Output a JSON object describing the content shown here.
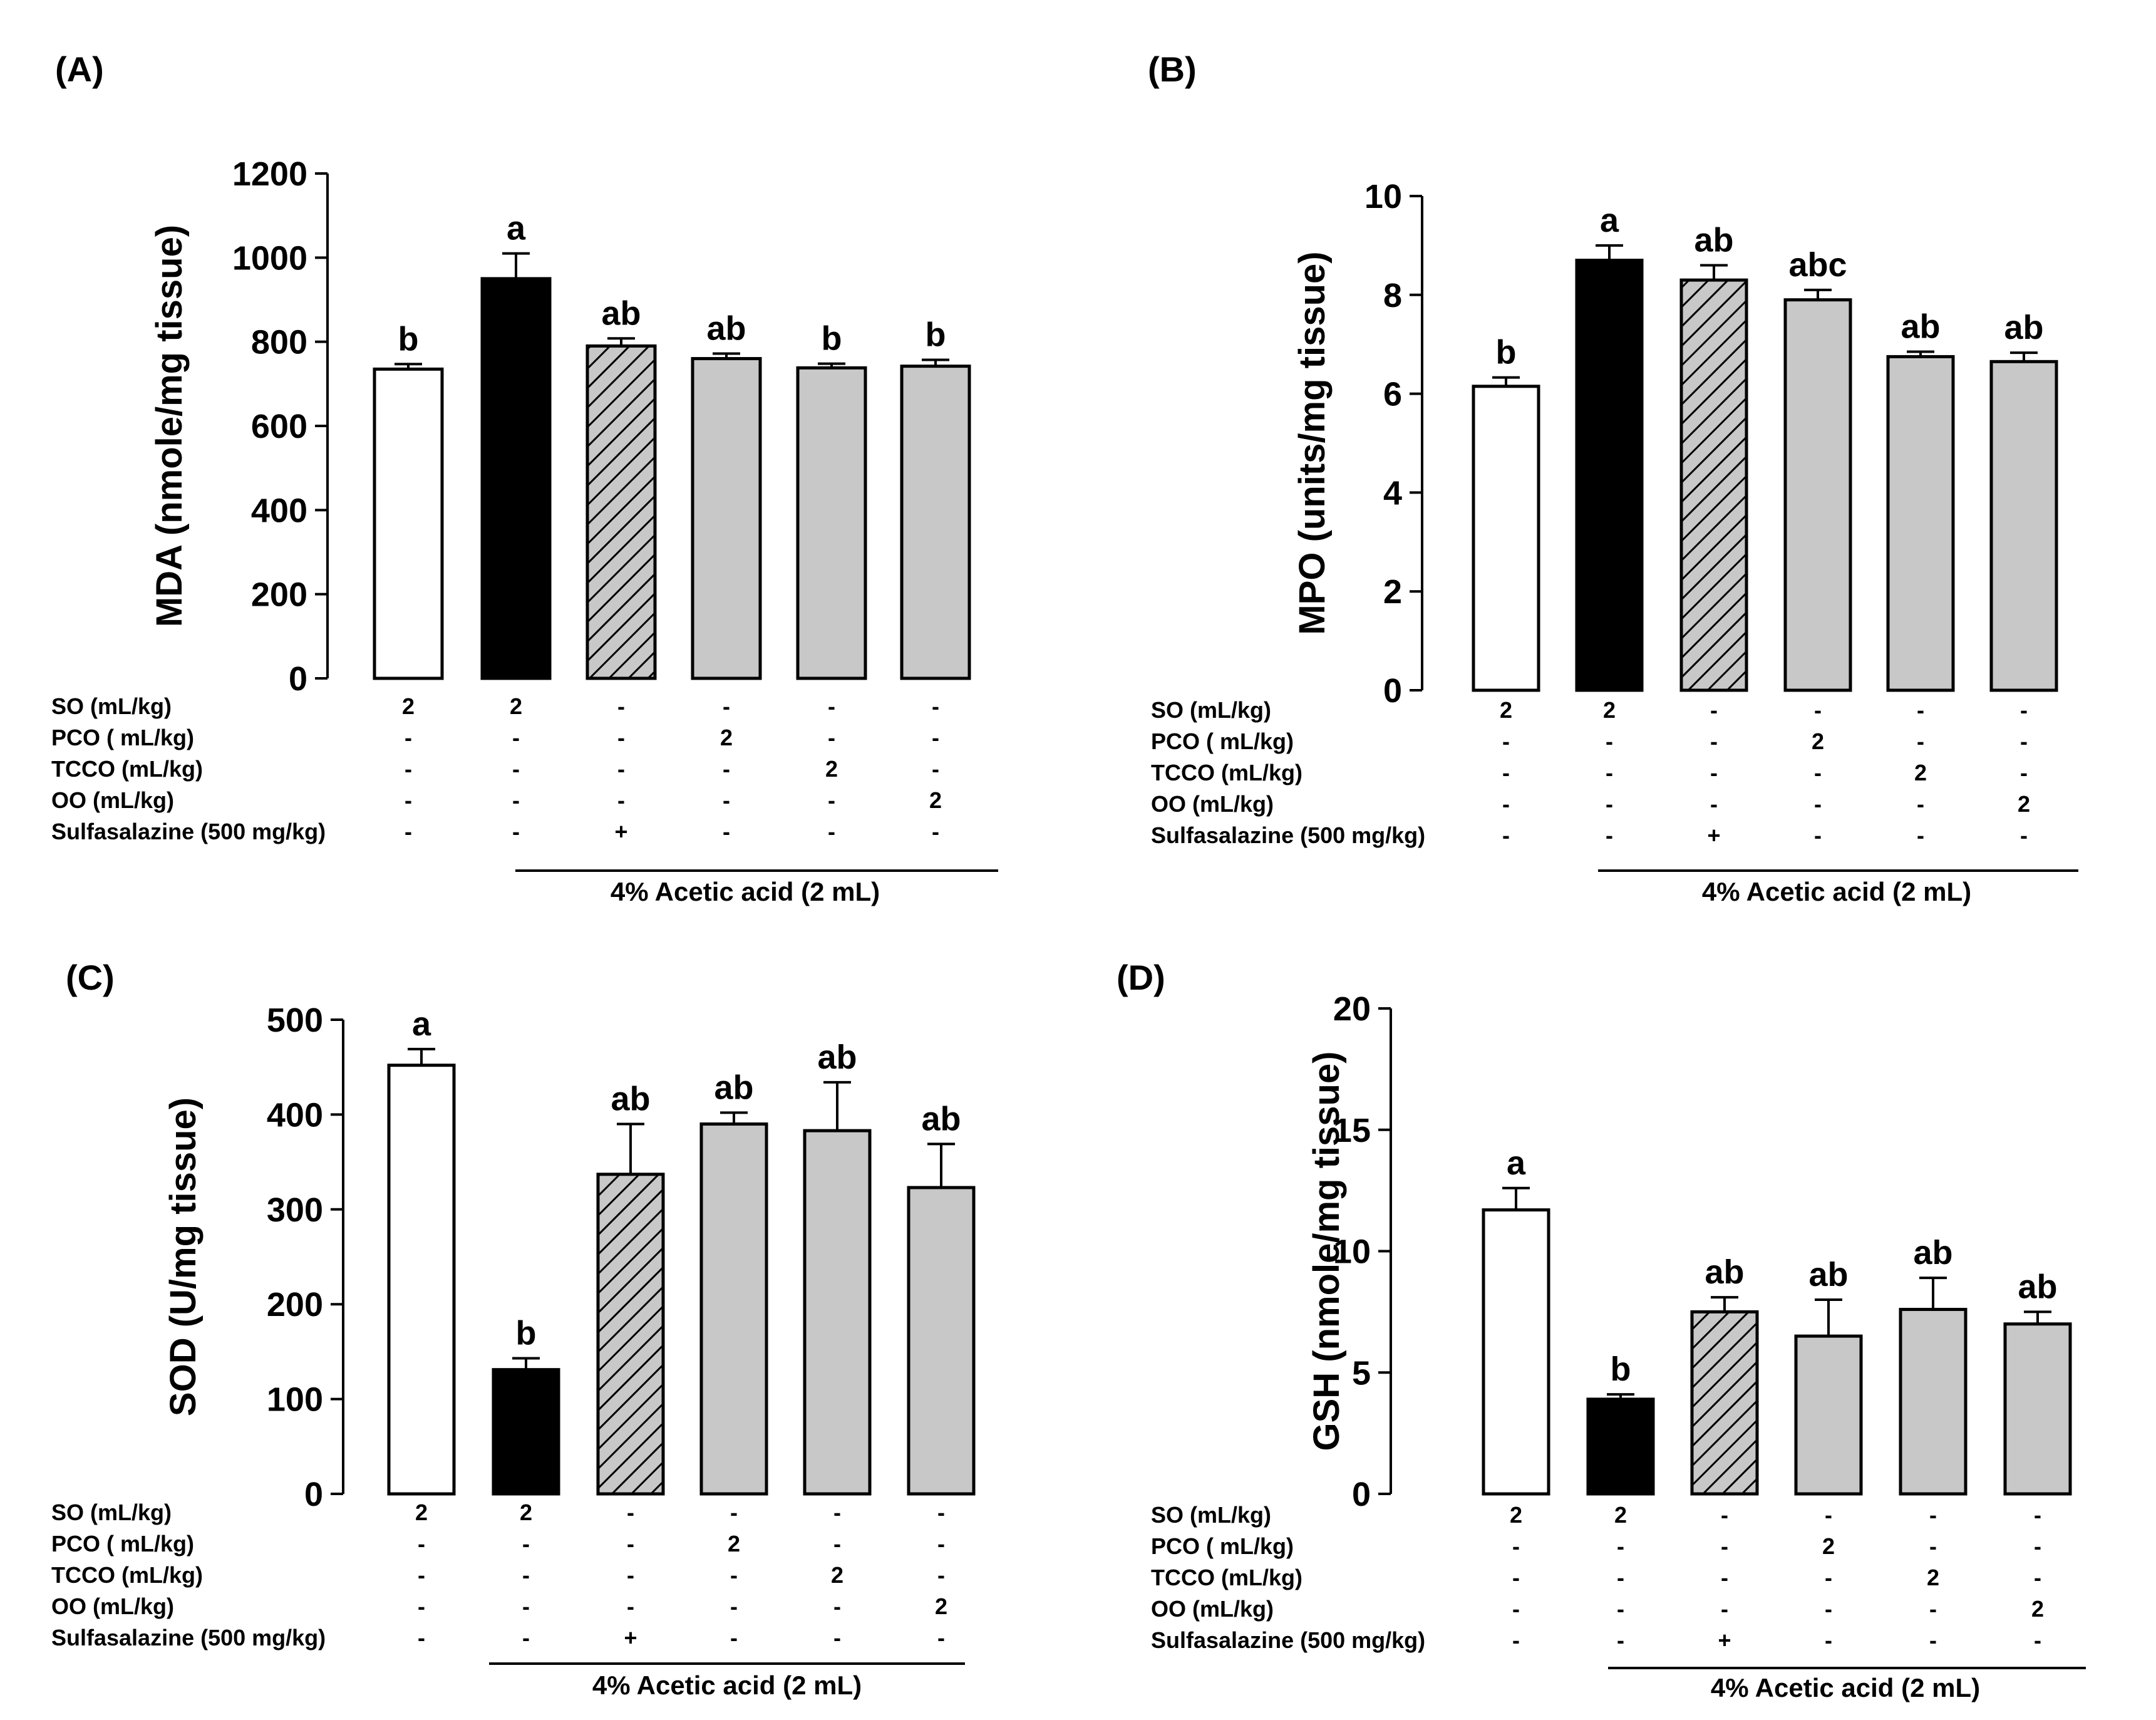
{
  "figure": {
    "treatment_rows": [
      {
        "label": "SO (mL/kg)",
        "values": [
          "2",
          "2",
          "-",
          "-",
          "-",
          "-"
        ]
      },
      {
        "label": "PCO ( mL/kg)",
        "values": [
          "-",
          "-",
          "-",
          "2",
          "-",
          "-"
        ]
      },
      {
        "label": "TCCO (mL/kg)",
        "values": [
          "-",
          "-",
          "-",
          "-",
          "2",
          "-"
        ]
      },
      {
        "label": "OO (mL/kg)",
        "values": [
          "-",
          "-",
          "-",
          "-",
          "-",
          "2"
        ]
      },
      {
        "label": "Sulfasalazine (500 mg/kg)",
        "values": [
          "-",
          "-",
          "+",
          "-",
          "-",
          "-"
        ]
      }
    ],
    "acetic_label": "4% Acetic acid (2 mL)",
    "bar_styles": [
      "white",
      "black",
      "hatched",
      "gray",
      "gray",
      "gray"
    ],
    "colors": {
      "black": "#000000",
      "gray": "#c8c8c8",
      "white": "#ffffff"
    }
  },
  "chart_data": [
    {
      "panel": "(A)",
      "type": "bar",
      "ylabel": "MDA (nmole/mg tissue)",
      "ylim": [
        0,
        1200
      ],
      "yticks": [
        0,
        200,
        400,
        600,
        800,
        1000,
        1200
      ],
      "values": [
        735,
        950,
        790,
        760,
        738,
        742
      ],
      "errors": [
        12,
        60,
        18,
        12,
        10,
        15
      ],
      "significance": [
        "b",
        "a",
        "ab",
        "ab",
        "b",
        "b"
      ]
    },
    {
      "panel": "(B)",
      "type": "bar",
      "ylabel": "MPO (units/mg tissue)",
      "ylim": [
        0,
        10
      ],
      "yticks": [
        0,
        2,
        4,
        6,
        8,
        10
      ],
      "values": [
        6.15,
        8.7,
        8.3,
        7.9,
        6.75,
        6.65
      ],
      "errors": [
        0.18,
        0.3,
        0.3,
        0.2,
        0.1,
        0.18
      ],
      "significance": [
        "b",
        "a",
        "ab",
        "abc",
        "ab",
        "ab"
      ]
    },
    {
      "panel": "(C)",
      "type": "bar",
      "ylabel": "SOD (U/mg tissue)",
      "ylim": [
        0,
        500
      ],
      "yticks": [
        0,
        100,
        200,
        300,
        400,
        500
      ],
      "values": [
        452,
        131,
        337,
        390,
        383,
        323
      ],
      "errors": [
        17,
        12,
        53,
        12,
        51,
        46
      ],
      "significance": [
        "a",
        "b",
        "ab",
        "ab",
        "ab",
        "ab"
      ]
    },
    {
      "panel": "(D)",
      "type": "bar",
      "ylabel": "GSH (nmole/mg tissue)",
      "ylim": [
        0,
        20
      ],
      "yticks": [
        0,
        5,
        10,
        15,
        20
      ],
      "values": [
        11.7,
        3.9,
        7.5,
        6.5,
        7.6,
        7.0
      ],
      "errors": [
        0.9,
        0.2,
        0.6,
        1.5,
        1.3,
        0.5
      ],
      "significance": [
        "a",
        "b",
        "ab",
        "ab",
        "ab",
        "ab"
      ]
    }
  ]
}
